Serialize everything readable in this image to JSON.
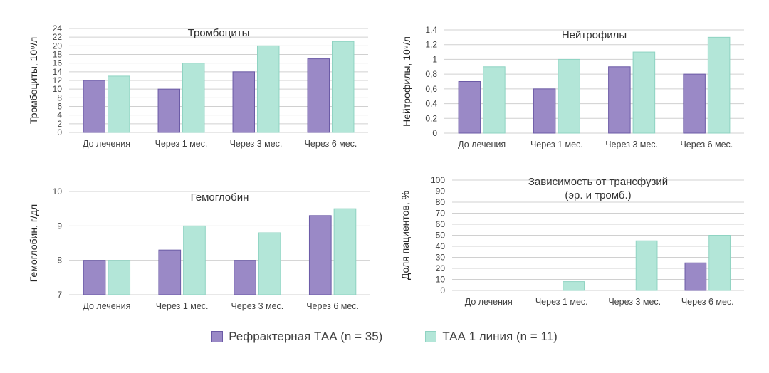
{
  "legend": {
    "series_a": "Рефрактерная ТАА (n = 35)",
    "series_b": "ТАА 1 линия (n = 11)"
  },
  "colors": {
    "series_a_fill": "#9a89c6",
    "series_a_stroke": "#6b5aa6",
    "series_b_fill": "#b3e6d8",
    "series_b_stroke": "#8fd3c2",
    "grid": "#d0d0d0",
    "text": "#404040"
  },
  "chart_data": [
    {
      "id": "platelets",
      "type": "bar",
      "title": "Тромбоциты",
      "ylabel": "Тромбоциты, 10⁹/л",
      "xlabel": "",
      "categories": [
        "До лечения",
        "Через 1 мес.",
        "Через 3 мес.",
        "Через 6 мес."
      ],
      "ylim": [
        0,
        24
      ],
      "ticks": [
        0,
        2,
        4,
        6,
        8,
        10,
        12,
        14,
        16,
        18,
        20,
        22,
        24
      ],
      "tick_labels": [
        "0",
        "2",
        "4",
        "6",
        "8",
        "10",
        "12",
        "14",
        "16",
        "18",
        "20",
        "22",
        "24"
      ],
      "series": [
        {
          "name": "Рефрактерная ТАА (n = 35)",
          "values": [
            12,
            10,
            14,
            17
          ]
        },
        {
          "name": "ТАА 1 линия (n = 11)",
          "values": [
            13,
            16,
            20,
            21
          ]
        }
      ]
    },
    {
      "id": "neutrophils",
      "type": "bar",
      "title": "Нейтрофилы",
      "ylabel": "Нейтрофилы, 10⁹/л",
      "xlabel": "",
      "categories": [
        "До лечения",
        "Через 1 мес.",
        "Через 3 мес.",
        "Через 6 мес."
      ],
      "ylim": [
        0,
        1.4
      ],
      "ticks": [
        0,
        0.2,
        0.4,
        0.6,
        0.8,
        1,
        1.2,
        1.4
      ],
      "tick_labels": [
        "0",
        "0,2",
        "0,4",
        "0,6",
        "0,8",
        "1",
        "1,2",
        "1,4"
      ],
      "series": [
        {
          "name": "Рефрактерная ТАА (n = 35)",
          "values": [
            0.7,
            0.6,
            0.9,
            0.8
          ]
        },
        {
          "name": "ТАА 1 линия (n = 11)",
          "values": [
            0.9,
            1.0,
            1.1,
            1.3
          ]
        }
      ]
    },
    {
      "id": "hemoglobin",
      "type": "bar",
      "title": "Гемоглобин",
      "ylabel": "Гемоглобин, г/дл",
      "xlabel": "",
      "categories": [
        "До лечения",
        "Через 1 мес.",
        "Через 3 мес.",
        "Через 6 мес."
      ],
      "ylim": [
        7,
        10
      ],
      "ticks": [
        7,
        8,
        9,
        10
      ],
      "tick_labels": [
        "7",
        "8",
        "9",
        "10"
      ],
      "series": [
        {
          "name": "Рефрактерная ТАА (n = 35)",
          "values": [
            8,
            8.3,
            8,
            9.3
          ]
        },
        {
          "name": "ТАА 1 линия (n = 11)",
          "values": [
            8,
            9,
            8.8,
            9.5
          ]
        }
      ]
    },
    {
      "id": "transfusion",
      "type": "bar",
      "title": "Зависимость от трансфузий",
      "subtitle": "(эр. и тромб.)",
      "ylabel": "Доля пациентов, %",
      "xlabel": "",
      "categories": [
        "До лечения",
        "Через 1 мес.",
        "Через 3 мес.",
        "Через 6 мес."
      ],
      "ylim": [
        0,
        100
      ],
      "ticks": [
        0,
        10,
        20,
        30,
        40,
        50,
        60,
        70,
        80,
        90,
        100
      ],
      "tick_labels": [
        "0",
        "10",
        "20",
        "30",
        "40",
        "50",
        "60",
        "70",
        "80",
        "90",
        "100"
      ],
      "series": [
        {
          "name": "Рефрактерная ТАА (n = 35)",
          "values": [
            0,
            0,
            0,
            25
          ]
        },
        {
          "name": "ТАА 1 линия (n = 11)",
          "values": [
            0,
            8,
            45,
            50
          ]
        }
      ]
    }
  ]
}
